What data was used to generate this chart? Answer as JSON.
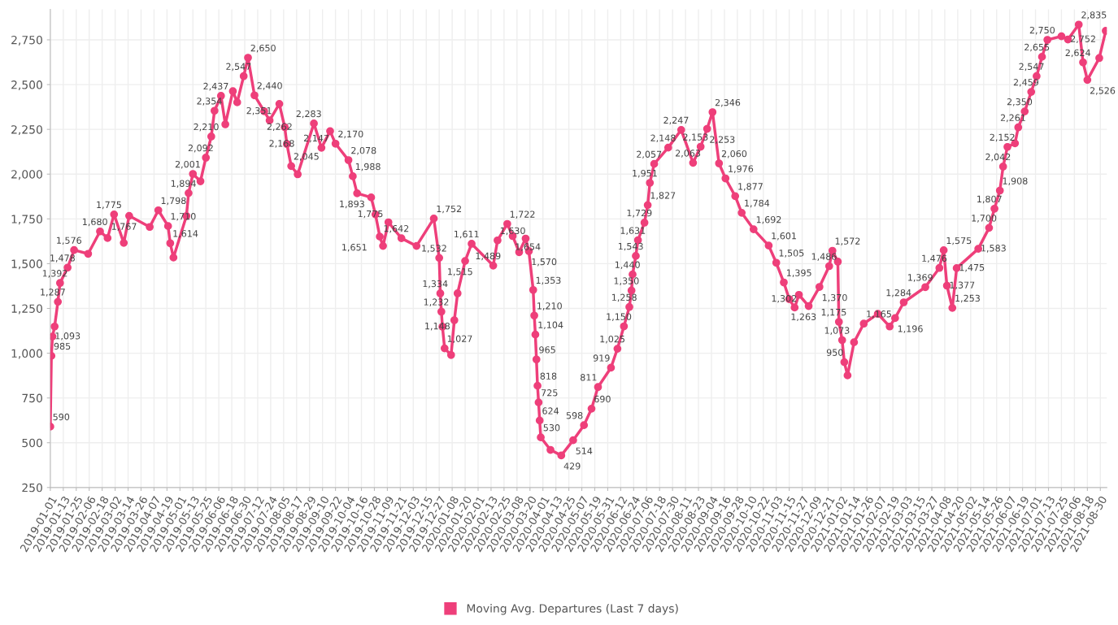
{
  "chart_data": {
    "type": "line",
    "marker": "circle",
    "line_style": "solid",
    "grid": true,
    "legend": "bottom",
    "xlim": [
      "2019-01-01",
      "2021-09-05"
    ],
    "ylim": [
      250,
      2920
    ],
    "yticks": [
      250,
      500,
      750,
      {
        "value": 1000,
        "label": "1,000"
      },
      {
        "value": 1250,
        "label": "1,250"
      },
      {
        "value": 1500,
        "label": "1,500"
      },
      {
        "value": 1750,
        "label": "1,750"
      },
      {
        "value": 2000,
        "label": "2,000"
      },
      {
        "value": 2250,
        "label": "2,250"
      },
      {
        "value": 2500,
        "label": "2,500"
      },
      {
        "value": 2750,
        "label": "2,750"
      }
    ],
    "xticks": [
      "2019-01-01",
      "2019-01-13",
      "2019-01-25",
      "2019-02-06",
      "2019-02-18",
      "2019-03-02",
      "2019-03-14",
      "2019-03-26",
      "2019-04-07",
      "2019-04-19",
      "2019-05-01",
      "2019-05-13",
      "2019-05-25",
      "2019-06-06",
      "2019-06-18",
      "2019-06-30",
      "2019-07-12",
      "2019-07-24",
      "2019-08-05",
      "2019-08-17",
      "2019-08-29",
      "2019-09-10",
      "2019-09-22",
      "2019-10-04",
      "2019-10-16",
      "2019-10-28",
      "2019-11-09",
      "2019-11-21",
      "2019-12-03",
      "2019-12-15",
      "2019-12-27",
      "2020-01-08",
      "2020-01-20",
      "2020-02-01",
      "2020-02-13",
      "2020-02-25",
      "2020-03-08",
      "2020-03-20",
      "2020-04-01",
      "2020-04-13",
      "2020-04-25",
      "2020-05-07",
      "2020-05-19",
      "2020-05-31",
      "2020-06-12",
      "2020-06-24",
      "2020-07-06",
      "2020-07-18",
      "2020-07-30",
      "2020-08-11",
      "2020-08-23",
      "2020-09-04",
      "2020-09-16",
      "2020-09-28",
      "2020-10-10",
      "2020-10-22",
      "2020-11-03",
      "2020-11-15",
      "2020-11-27",
      "2020-12-09",
      "2020-12-21",
      "2021-01-02",
      "2021-01-14",
      "2021-01-26",
      "2021-02-07",
      "2021-02-19",
      "2021-03-03",
      "2021-03-15",
      "2021-03-27",
      "2021-04-08",
      "2021-04-20",
      "2021-05-02",
      "2021-05-14",
      "2021-05-26",
      "2021-06-07",
      "2021-06-19",
      "2021-07-01",
      "2021-07-13",
      "2021-07-25",
      "2021-08-06",
      "2021-08-18",
      "2021-08-30"
    ],
    "series": [
      {
        "name": "Moving Avg. Departures (Last 7 days)",
        "color": "#ee3f7a",
        "x": [
          "2019-01-01",
          "2019-01-02",
          "2019-01-03",
          "2019-01-05",
          "2019-01-08",
          "2019-01-10",
          "2019-01-17",
          "2019-01-23",
          "2019-02-05",
          "2019-02-16",
          "2019-02-23",
          "2019-03-01",
          "2019-03-10",
          "2019-03-15",
          "2019-04-03",
          "2019-04-11",
          "2019-04-20",
          "2019-04-22",
          "2019-04-25",
          "2019-05-07",
          "2019-05-09",
          "2019-05-13",
          "2019-05-20",
          "2019-05-25",
          "2019-05-30",
          "2019-06-02",
          "2019-06-08",
          "2019-06-12",
          "2019-06-19",
          "2019-06-23",
          "2019-06-29",
          "2019-07-03",
          "2019-07-09",
          "2019-07-18",
          "2019-07-23",
          "2019-08-01",
          "2019-08-06",
          "2019-08-08",
          "2019-08-12",
          "2019-08-18",
          "2019-09-02",
          "2019-09-09",
          "2019-09-17",
          "2019-09-22",
          "2019-10-04",
          "2019-10-08",
          "2019-10-12",
          "2019-10-25",
          "2019-10-29",
          "2019-11-02",
          "2019-11-05",
          "2019-11-10",
          "2019-11-22",
          "2019-12-06",
          "2019-12-22",
          "2019-12-27",
          "2019-12-28",
          "2019-12-29",
          "2019-12-30",
          "2020-01-01",
          "2020-01-07",
          "2020-01-10",
          "2020-01-13",
          "2020-01-20",
          "2020-01-26",
          "2020-02-15",
          "2020-02-19",
          "2020-02-28",
          "2020-03-04",
          "2020-03-10",
          "2020-03-16",
          "2020-03-19",
          "2020-03-23",
          "2020-03-24",
          "2020-03-25",
          "2020-03-26",
          "2020-03-27",
          "2020-03-28",
          "2020-03-29",
          "2020-03-30",
          "2020-04-08",
          "2020-04-18",
          "2020-04-29",
          "2020-05-09",
          "2020-05-16",
          "2020-05-22",
          "2020-06-03",
          "2020-06-09",
          "2020-06-15",
          "2020-06-20",
          "2020-06-22",
          "2020-06-23",
          "2020-06-26",
          "2020-06-28",
          "2020-07-04",
          "2020-07-07",
          "2020-07-09",
          "2020-07-13",
          "2020-07-26",
          "2020-08-07",
          "2020-08-18",
          "2020-08-25",
          "2020-08-31",
          "2020-09-05",
          "2020-09-11",
          "2020-09-17",
          "2020-09-26",
          "2020-10-02",
          "2020-10-13",
          "2020-10-27",
          "2020-11-03",
          "2020-11-10",
          "2020-11-15",
          "2020-11-20",
          "2020-11-24",
          "2020-12-03",
          "2020-12-13",
          "2020-12-22",
          "2020-12-25",
          "2020-12-30",
          "2020-12-31",
          "2021-01-03",
          "2021-01-05",
          "2021-01-08",
          "2021-01-14",
          "2021-01-23",
          "2021-02-05",
          "2021-02-16",
          "2021-02-21",
          "2021-03-01",
          "2021-03-21",
          "2021-04-03",
          "2021-04-07",
          "2021-04-10",
          "2021-04-15",
          "2021-04-19",
          "2021-05-09",
          "2021-05-19",
          "2021-05-24",
          "2021-05-29",
          "2021-06-01",
          "2021-06-05",
          "2021-06-12",
          "2021-06-15",
          "2021-06-21",
          "2021-06-27",
          "2021-07-02",
          "2021-07-07",
          "2021-07-12",
          "2021-07-25",
          "2021-07-31",
          "2021-08-10",
          "2021-08-14",
          "2021-08-18",
          "2021-08-29",
          "2021-09-04"
        ],
        "values": [
          590,
          985,
          1093,
          1149,
          1287,
          1392,
          1478,
          1576,
          1555,
          1680,
          1643,
          1775,
          1616,
          1767,
          1705,
          1798,
          1710,
          1614,
          1534,
          1766,
          1894,
          2001,
          1960,
          2092,
          2210,
          2354,
          2437,
          2278,
          2463,
          2401,
          2547,
          2650,
          2440,
          2351,
          2300,
          2392,
          2262,
          2168,
          2045,
          1999,
          2283,
          2147,
          2240,
          2170,
          2078,
          1988,
          1893,
          1870,
          1775,
          1651,
          1599,
          1731,
          1642,
          1599,
          1752,
          1532,
          1334,
          1232,
          1148,
          1027,
          990,
          1184,
          1334,
          1515,
          1611,
          1489,
          1630,
          1722,
          1654,
          1564,
          1640,
          1570,
          1353,
          1210,
          1104,
          965,
          818,
          725,
          624,
          530,
          460,
          429,
          514,
          598,
          690,
          811,
          919,
          1025,
          1150,
          1258,
          1350,
          1440,
          1543,
          1631,
          1729,
          1827,
          1951,
          2057,
          2148,
          2247,
          2063,
          2153,
          2253,
          2346,
          2060,
          1976,
          1877,
          1784,
          1692,
          1601,
          1505,
          1395,
          1302,
          1255,
          1326,
          1263,
          1370,
          1486,
          1572,
          1511,
          1175,
          1073,
          950,
          876,
          1061,
          1165,
          1220,
          1149,
          1196,
          1284,
          1369,
          1476,
          1575,
          1377,
          1253,
          1475,
          1583,
          1700,
          1807,
          1908,
          2042,
          2152,
          2172,
          2261,
          2350,
          2459,
          2547,
          2655,
          2750,
          2770,
          2752,
          2835,
          2624,
          2526,
          2648,
          2800
        ],
        "value_labels": [
          "590",
          "985",
          "1,093",
          null,
          "1,287",
          "1,392",
          "1,478",
          "1,576",
          null,
          "1,680",
          null,
          "1,775",
          null,
          "1,767",
          null,
          "1,798",
          "1,710",
          "1,614",
          null,
          null,
          "1,894",
          "2,001",
          null,
          "2,092",
          "2,210",
          "2,354",
          "2,437",
          null,
          null,
          null,
          "2,547",
          "2,650",
          "2,440",
          "2,351",
          null,
          null,
          "2,262",
          "2,168",
          "2,045",
          null,
          "2,283",
          "2,147",
          null,
          "2,170",
          "2,078",
          "1,988",
          "1,893",
          null,
          "1,775",
          "1,651",
          null,
          null,
          "1,642",
          null,
          "1,752",
          "1,532",
          "1,334",
          "1,232",
          "1,148",
          "1,027",
          null,
          null,
          null,
          "1,515",
          "1,611",
          "1,489",
          "1,630",
          "1,722",
          "1,654",
          null,
          null,
          "1,570",
          "1,353",
          "1,210",
          "1,104",
          "965",
          "818",
          "725",
          "624",
          "530",
          null,
          "429",
          "514",
          "598",
          "690",
          "811",
          "919",
          "1,025",
          "1,150",
          "1,258",
          "1,350",
          "1,440",
          "1,543",
          "1,631",
          "1,729",
          "1,827",
          "1,951",
          "2,057",
          "2,148",
          "2,247",
          "2,063",
          "2,153",
          "2,253",
          "2,346",
          "2,060",
          "1,976",
          "1,877",
          "1,784",
          "1,692",
          "1,601",
          "1,505",
          "1,395",
          "1,302",
          null,
          null,
          "1,263",
          "1,370",
          "1,486",
          "1,572",
          null,
          "1,175",
          "1,073",
          "950",
          null,
          null,
          "1,165",
          null,
          null,
          "1,196",
          "1,284",
          "1,369",
          "1,476",
          "1,575",
          "1,377",
          "1,253",
          "1,475",
          "1,583",
          "1,700",
          "1,807",
          "1,908",
          "2,042",
          "2,152",
          null,
          "2,261",
          "2,350",
          "2,459",
          "2,547",
          "2,655",
          "2,750",
          null,
          "2,752",
          "2,835",
          "2,624",
          "2,526",
          null,
          null
        ]
      }
    ]
  }
}
